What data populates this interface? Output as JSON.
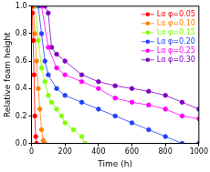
{
  "chart_data": {
    "type": "line",
    "x_label": "Time (h)",
    "y_label": "Relative foam height",
    "xlim": [
      0,
      1000
    ],
    "xticks": [
      0,
      200,
      400,
      600,
      800,
      1000
    ],
    "ylim": [
      0,
      1.0
    ],
    "yticks": [
      {
        "value": 0,
        "label": "0.0"
      },
      0.2,
      0.4,
      0.6,
      0.8,
      {
        "value": 1.0,
        "label": "1.0"
      }
    ],
    "grid": false,
    "legend": "upper right",
    "marker": "circle",
    "line_style": "solid",
    "series": [
      {
        "name": "Lα φ=0.05",
        "color": "#ff0000",
        "x": [
          0,
          5,
          10,
          15,
          20,
          25,
          30
        ],
        "values": [
          1.0,
          0.95,
          0.75,
          0.5,
          0.2,
          0.05,
          0
        ]
      },
      {
        "name": "Lα φ=0.10",
        "color": "#ff8000",
        "x": [
          0,
          10,
          20,
          30,
          40,
          50,
          60,
          70,
          80
        ],
        "values": [
          1.0,
          1.0,
          0.8,
          0.6,
          0.4,
          0.25,
          0.1,
          0.02,
          0
        ]
      },
      {
        "name": "Lα φ=0.15",
        "color": "#80ff00",
        "x": [
          0,
          20,
          40,
          60,
          80,
          100,
          120,
          150,
          180,
          200,
          250,
          300,
          320
        ],
        "values": [
          1.0,
          1.0,
          0.75,
          0.55,
          0.45,
          0.35,
          0.3,
          0.25,
          0.2,
          0.15,
          0.1,
          0.05,
          0
        ]
      },
      {
        "name": "Lα φ=0.20",
        "color": "#2040ff",
        "x": [
          0,
          40,
          60,
          80,
          100,
          150,
          200,
          300,
          400,
          500,
          600,
          700,
          800,
          900,
          1000
        ],
        "values": [
          1.0,
          1.0,
          0.8,
          0.6,
          0.5,
          0.4,
          0.35,
          0.3,
          0.25,
          0.2,
          0.15,
          0.1,
          0.05,
          0,
          0
        ]
      },
      {
        "name": "Lα φ=0.25",
        "color": "#ff00ff",
        "x": [
          0,
          60,
          100,
          150,
          200,
          300,
          400,
          500,
          600,
          700,
          800,
          900,
          1000
        ],
        "values": [
          1.0,
          1.0,
          0.7,
          0.55,
          0.5,
          0.45,
          0.4,
          0.33,
          0.3,
          0.28,
          0.25,
          0.2,
          0.18
        ]
      },
      {
        "name": "Lα φ=0.30",
        "color": "#8000c0",
        "x": [
          0,
          80,
          100,
          120,
          150,
          200,
          300,
          400,
          500,
          600,
          700,
          800,
          900,
          1000
        ],
        "values": [
          1.0,
          1.0,
          0.95,
          0.7,
          0.65,
          0.6,
          0.5,
          0.45,
          0.42,
          0.4,
          0.38,
          0.35,
          0.3,
          0.25
        ]
      }
    ]
  }
}
